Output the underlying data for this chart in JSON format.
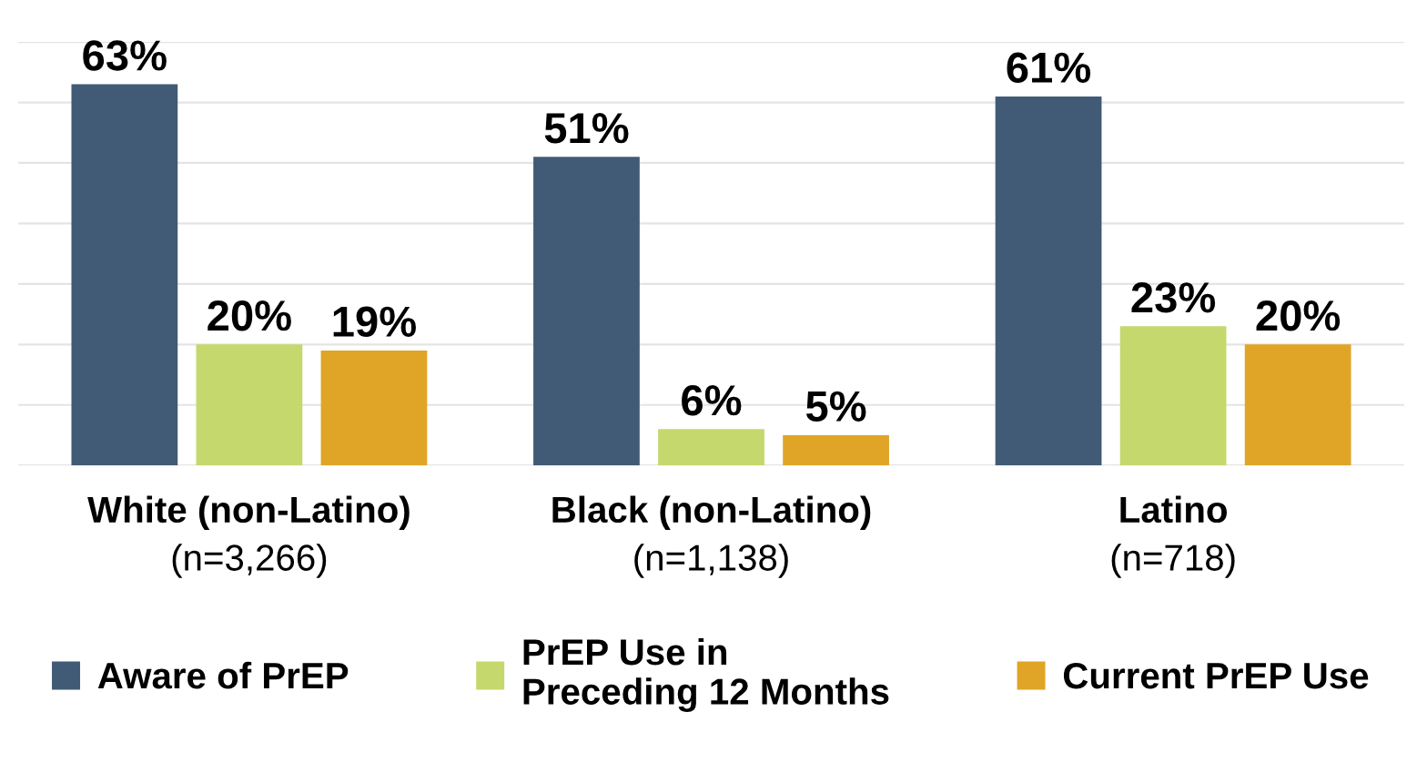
{
  "chart_data": {
    "type": "bar",
    "categories": [
      "White (non-Latino)\n(n=3,266)",
      "Black (non-Latino)\n(n=1,138)",
      "Latino\n(n=718)"
    ],
    "series": [
      {
        "name": "Aware of PrEP",
        "color": "#415a75",
        "values": [
          63,
          51,
          61
        ],
        "value_labels": [
          "63%",
          "51%",
          "61%"
        ]
      },
      {
        "name": "PrEP Use in\nPreceding 12 Months",
        "color": "#c5d86d",
        "values": [
          20,
          6,
          23
        ],
        "value_labels": [
          "20%",
          "6%",
          "23%"
        ]
      },
      {
        "name": "Current PrEP Use",
        "color": "#e0a526",
        "values": [
          19,
          5,
          20
        ],
        "value_labels": [
          "19%",
          "5%",
          "20%"
        ]
      }
    ],
    "ylim": [
      0,
      70
    ],
    "yticks": [
      0,
      10,
      20,
      30,
      40,
      50,
      60,
      70
    ],
    "tick_labels": "x",
    "grid": "y",
    "legend": "bottom"
  }
}
